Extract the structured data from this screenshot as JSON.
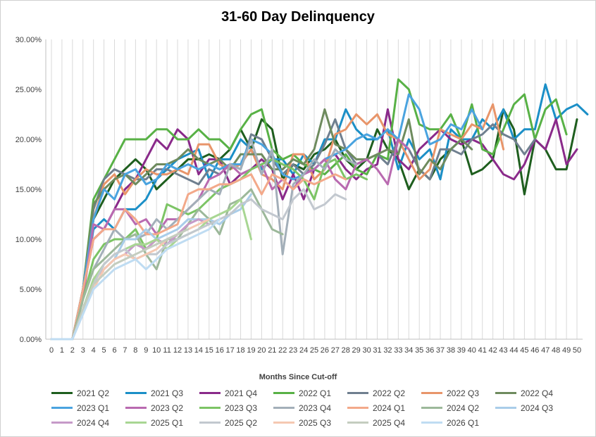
{
  "chart_data": {
    "type": "line",
    "title": "31-60 Day Delinquency",
    "xlabel": "Months Since Cut-off",
    "ylabel": "",
    "xlim": [
      0,
      50
    ],
    "ylim": [
      0,
      0.3
    ],
    "yticks": [
      "0.00%",
      "5.00%",
      "10.00%",
      "15.00%",
      "20.00%",
      "25.00%",
      "30.00%"
    ],
    "xticks": [
      "0",
      "1",
      "2",
      "3",
      "4",
      "5",
      "6",
      "7",
      "8",
      "9",
      "10",
      "11",
      "12",
      "13",
      "14",
      "15",
      "16",
      "17",
      "18",
      "19",
      "20",
      "21",
      "22",
      "23",
      "24",
      "25",
      "26",
      "27",
      "28",
      "29",
      "30",
      "31",
      "32",
      "33",
      "34",
      "35",
      "36",
      "37",
      "38",
      "39",
      "40",
      "41",
      "42",
      "43",
      "44",
      "45",
      "46",
      "47",
      "48",
      "49",
      "50"
    ],
    "grid": "vertical lines only",
    "legend_position": "bottom",
    "series": [
      {
        "name": "2021 Q2",
        "color": "#1e5e1e",
        "values": [
          0,
          0,
          0,
          0.05,
          0.12,
          0.14,
          0.16,
          0.17,
          0.18,
          0.17,
          0.15,
          0.16,
          0.17,
          0.18,
          0.18,
          0.185,
          0.18,
          0.19,
          0.21,
          0.19,
          0.22,
          0.21,
          0.16,
          0.175,
          0.17,
          0.185,
          0.19,
          0.2,
          0.18,
          0.17,
          0.18,
          0.21,
          0.19,
          0.18,
          0.15,
          0.17,
          0.16,
          0.18,
          0.19,
          0.2,
          0.165,
          0.17,
          0.18,
          0.23,
          0.21,
          0.145,
          0.2,
          0.19,
          0.17,
          0.17,
          0.22
        ]
      },
      {
        "name": "2021 Q3",
        "color": "#1b8fc7",
        "values": [
          0,
          0,
          0,
          0.05,
          0.11,
          0.12,
          0.11,
          0.13,
          0.13,
          0.14,
          0.16,
          0.17,
          0.18,
          0.185,
          0.19,
          0.16,
          0.18,
          0.18,
          0.2,
          0.19,
          0.17,
          0.18,
          0.18,
          0.165,
          0.185,
          0.175,
          0.2,
          0.2,
          0.23,
          0.21,
          0.2,
          0.2,
          0.21,
          0.17,
          0.2,
          0.18,
          0.19,
          0.16,
          0.21,
          0.2,
          0.2,
          0.22,
          0.21,
          0.23,
          0.2,
          0.21,
          0.21,
          0.255,
          0.22,
          0.23,
          0.235,
          0.225
        ]
      },
      {
        "name": "2021 Q4",
        "color": "#8a2a8a",
        "values": [
          0,
          0,
          0,
          0.05,
          0.1,
          0.11,
          0.13,
          0.15,
          0.16,
          0.18,
          0.2,
          0.19,
          0.21,
          0.2,
          0.165,
          0.18,
          0.18,
          0.155,
          0.165,
          0.17,
          0.18,
          0.17,
          0.14,
          0.165,
          0.14,
          0.17,
          0.18,
          0.185,
          0.17,
          0.16,
          0.17,
          0.175,
          0.23,
          0.18,
          0.17,
          0.19,
          0.2,
          0.21,
          0.2,
          0.195,
          0.2,
          0.195,
          0.18,
          0.165,
          0.16,
          0.175,
          0.2,
          0.19,
          0.22,
          0.175,
          0.19
        ]
      },
      {
        "name": "2022 Q1",
        "color": "#58b146",
        "values": [
          0,
          0,
          0,
          0.05,
          0.14,
          0.16,
          0.18,
          0.2,
          0.2,
          0.2,
          0.21,
          0.21,
          0.2,
          0.2,
          0.21,
          0.2,
          0.2,
          0.19,
          0.21,
          0.225,
          0.23,
          0.19,
          0.18,
          0.185,
          0.175,
          0.17,
          0.165,
          0.175,
          0.185,
          0.17,
          0.165,
          0.185,
          0.18,
          0.26,
          0.25,
          0.215,
          0.21,
          0.21,
          0.225,
          0.2,
          0.235,
          0.19,
          0.185,
          0.21,
          0.235,
          0.245,
          0.2,
          0.23,
          0.24,
          0.205
        ]
      },
      {
        "name": "2022 Q2",
        "color": "#6f7f8f",
        "values": [
          0,
          0,
          0,
          0.05,
          0.13,
          0.16,
          0.17,
          0.165,
          0.16,
          0.16,
          0.17,
          0.17,
          0.165,
          0.16,
          0.155,
          0.17,
          0.165,
          0.175,
          0.17,
          0.205,
          0.2,
          0.18,
          0.165,
          0.175,
          0.165,
          0.175,
          0.195,
          0.22,
          0.19,
          0.175,
          0.18,
          0.185,
          0.175,
          0.2,
          0.19,
          0.17,
          0.16,
          0.19,
          0.19,
          0.185,
          0.2,
          0.205,
          0.215,
          0.205,
          0.2,
          0.185,
          0.2
        ]
      },
      {
        "name": "2022 Q3",
        "color": "#e8956a",
        "values": [
          0,
          0,
          0,
          0.05,
          0.12,
          0.155,
          0.165,
          0.145,
          0.16,
          0.17,
          0.165,
          0.165,
          0.17,
          0.165,
          0.195,
          0.195,
          0.175,
          0.17,
          0.175,
          0.19,
          0.165,
          0.16,
          0.15,
          0.185,
          0.185,
          0.16,
          0.17,
          0.205,
          0.21,
          0.225,
          0.215,
          0.225,
          0.205,
          0.2,
          0.18,
          0.16,
          0.17,
          0.21,
          0.205,
          0.2,
          0.215,
          0.21,
          0.235,
          0.19
        ]
      },
      {
        "name": "2022 Q4",
        "color": "#6e8b5e",
        "values": [
          0,
          0,
          0,
          0.05,
          0.135,
          0.15,
          0.16,
          0.165,
          0.155,
          0.165,
          0.175,
          0.175,
          0.18,
          0.19,
          0.18,
          0.175,
          0.18,
          0.17,
          0.185,
          0.185,
          0.185,
          0.17,
          0.17,
          0.18,
          0.175,
          0.19,
          0.23,
          0.195,
          0.19,
          0.18,
          0.18,
          0.185,
          0.19,
          0.185,
          0.22,
          0.165,
          0.18,
          0.17,
          0.19,
          0.2,
          0.19
        ]
      },
      {
        "name": "2023 Q1",
        "color": "#4aa3df",
        "values": [
          0,
          0,
          0,
          0.05,
          0.12,
          0.15,
          0.14,
          0.165,
          0.17,
          0.155,
          0.16,
          0.175,
          0.17,
          0.175,
          0.17,
          0.175,
          0.17,
          0.175,
          0.175,
          0.2,
          0.195,
          0.185,
          0.165,
          0.16,
          0.165,
          0.17,
          0.18,
          0.185,
          0.19,
          0.2,
          0.205,
          0.2,
          0.21,
          0.2,
          0.245,
          0.23,
          0.195,
          0.2,
          0.215,
          0.21,
          0.23,
          0.21
        ]
      },
      {
        "name": "2023 Q2",
        "color": "#b96ab0",
        "values": [
          0,
          0,
          0,
          0.04,
          0.115,
          0.11,
          0.13,
          0.13,
          0.115,
          0.12,
          0.105,
          0.12,
          0.12,
          0.13,
          0.14,
          0.16,
          0.165,
          0.175,
          0.165,
          0.17,
          0.175,
          0.15,
          0.16,
          0.15,
          0.165,
          0.17,
          0.18,
          0.16,
          0.15,
          0.175,
          0.18,
          0.17,
          0.155,
          0.2,
          0.19
        ]
      },
      {
        "name": "2023 Q3",
        "color": "#7cc465",
        "values": [
          0,
          0,
          0,
          0.04,
          0.08,
          0.095,
          0.1,
          0.1,
          0.11,
          0.09,
          0.1,
          0.135,
          0.13,
          0.125,
          0.13,
          0.14,
          0.15,
          0.155,
          0.16,
          0.17,
          0.175,
          0.18,
          0.175,
          0.17,
          0.16,
          0.14,
          0.175,
          0.18,
          0.16,
          0.165,
          0.16
        ]
      },
      {
        "name": "2023 Q4",
        "color": "#a3afb9",
        "values": [
          0,
          0,
          0,
          0.04,
          0.07,
          0.09,
          0.11,
          0.1,
          0.1,
          0.105,
          0.12,
          0.11,
          0.12,
          0.13,
          0.14,
          0.15,
          0.145,
          0.175,
          0.17,
          0.2,
          0.165,
          0.19,
          0.085,
          0.155,
          0.165,
          0.18,
          0.17,
          0.19,
          0.18,
          0.175
        ]
      },
      {
        "name": "2024 Q1",
        "color": "#f3a98a",
        "values": [
          0,
          0,
          0,
          0.05,
          0.1,
          0.11,
          0.11,
          0.13,
          0.12,
          0.105,
          0.105,
          0.11,
          0.115,
          0.145,
          0.15,
          0.15,
          0.155,
          0.155,
          0.16,
          0.165,
          0.145,
          0.165,
          0.16,
          0.15,
          0.16,
          0.155,
          0.16,
          0.165,
          0.16
        ]
      },
      {
        "name": "2024 Q2",
        "color": "#9cb89a",
        "values": [
          0,
          0,
          0,
          0.04,
          0.07,
          0.08,
          0.09,
          0.1,
          0.105,
          0.085,
          0.07,
          0.1,
          0.1,
          0.115,
          0.13,
          0.12,
          0.105,
          0.135,
          0.14,
          0.15,
          0.13,
          0.11,
          0.105
        ]
      },
      {
        "name": "2024 Q3",
        "color": "#a9cde9",
        "values": [
          0,
          0,
          0,
          0.03,
          0.06,
          0.07,
          0.08,
          0.1,
          0.1,
          0.11,
          0.1,
          0.105,
          0.11,
          0.12,
          0.12,
          0.12,
          0.115,
          0.125,
          0.13,
          0.145
        ]
      },
      {
        "name": "2024 Q4",
        "color": "#c69ac8",
        "values": [
          0,
          0,
          0,
          0.03,
          0.06,
          0.07,
          0.08,
          0.085,
          0.095,
          0.09,
          0.1,
          0.095,
          0.105,
          0.115,
          0.12,
          0.115,
          0.12
        ]
      },
      {
        "name": "2025 Q1",
        "color": "#a8d693",
        "values": [
          0,
          0,
          0,
          0.03,
          0.06,
          0.075,
          0.085,
          0.09,
          0.095,
          0.095,
          0.1,
          0.09,
          0.1,
          0.105,
          0.11,
          0.12,
          0.125,
          0.13,
          0.14,
          0.1
        ]
      },
      {
        "name": "2025 Q2",
        "color": "#c2c8cf",
        "values": [
          0,
          0,
          0,
          0.03,
          0.055,
          0.075,
          0.085,
          0.09,
          0.08,
          0.085,
          0.085,
          0.095,
          0.1,
          0.105,
          0.11,
          0.115,
          0.12,
          0.125,
          0.135,
          0.14,
          0.13,
          0.125,
          0.12,
          0.14,
          0.15,
          0.13,
          0.135,
          0.145,
          0.14
        ]
      },
      {
        "name": "2025 Q3",
        "color": "#f5c8b2",
        "values": [
          0,
          0,
          0,
          0.03,
          0.05,
          0.07,
          0.08,
          0.085,
          0.08,
          0.085,
          0.09,
          0.1,
          0.105,
          0.11,
          0.115,
          0.12
        ]
      },
      {
        "name": "2025 Q4",
        "color": "#c4cdbf",
        "values": [
          0,
          0,
          0,
          0.03,
          0.055,
          0.065,
          0.075,
          0.08,
          0.085,
          0.09,
          0.095,
          0.1,
          0.105,
          0.11
        ]
      },
      {
        "name": "2026 Q1",
        "color": "#bfdcf2",
        "values": [
          0,
          0,
          0,
          0.025,
          0.05,
          0.06,
          0.07,
          0.075,
          0.08,
          0.07,
          0.08,
          0.09,
          0.095,
          0.1,
          0.105,
          0.11,
          0.12
        ]
      }
    ]
  }
}
